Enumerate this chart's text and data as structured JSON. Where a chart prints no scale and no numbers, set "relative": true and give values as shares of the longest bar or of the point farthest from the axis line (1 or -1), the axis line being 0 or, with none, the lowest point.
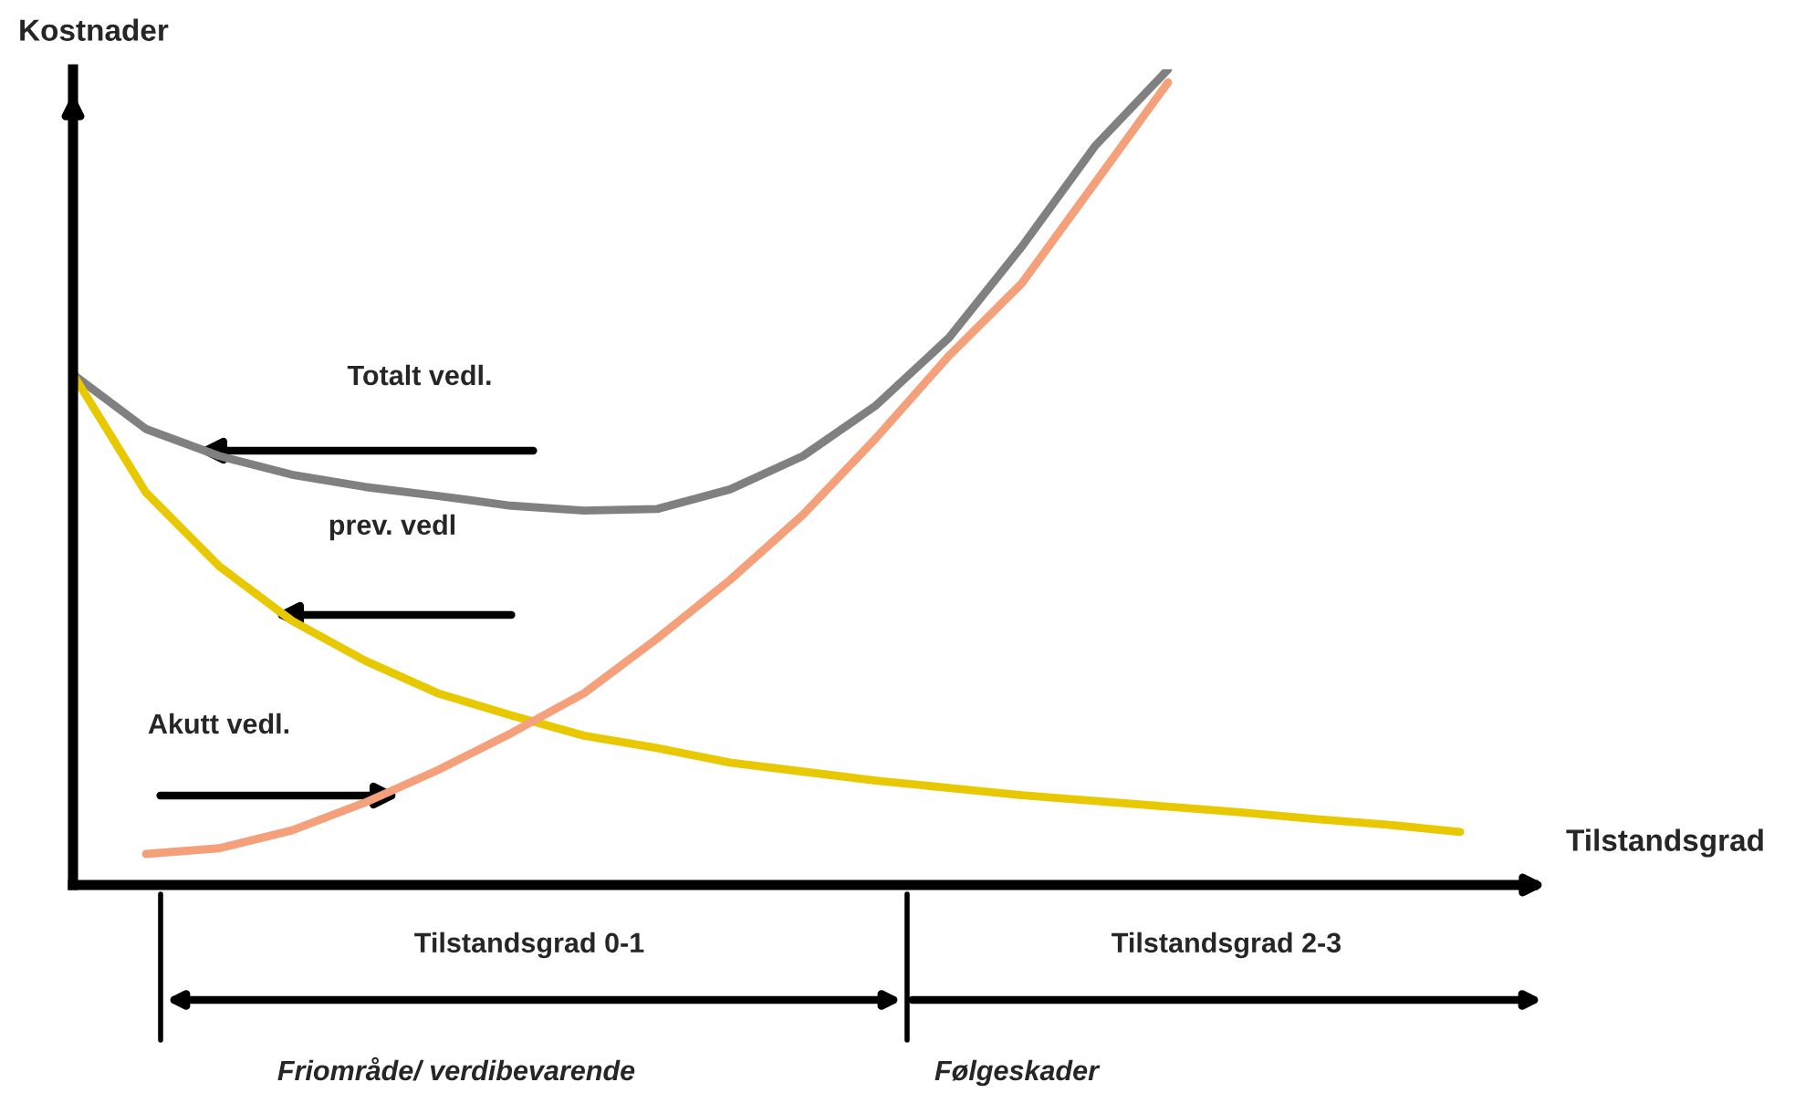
{
  "chart_data": {
    "type": "line",
    "relative": true,
    "xlabel": "Tilstandsgrad",
    "ylabel": "Kostnader",
    "categories": [
      null,
      null,
      null,
      null,
      null,
      null,
      null,
      null,
      null,
      null,
      null,
      null,
      null,
      null,
      null,
      null,
      null,
      null,
      null,
      null,
      null
    ],
    "series": [
      {
        "color": "#808080",
        "values": [
          0.626,
          0.559,
          0.526,
          0.503,
          0.488,
          0.477,
          0.465,
          0.459,
          0.461,
          0.485,
          0.526,
          0.588,
          0.671,
          0.783,
          0.906,
          1.0,
          null,
          null,
          null,
          null,
          null
        ]
      },
      {
        "color": "#e8c800",
        "values": [
          0.626,
          0.481,
          0.391,
          0.324,
          0.275,
          0.235,
          0.208,
          0.183,
          0.168,
          0.15,
          0.139,
          0.128,
          0.119,
          0.11,
          0.103,
          0.096,
          0.089,
          0.081,
          0.074,
          0.065,
          null
        ]
      },
      {
        "color": "#f4a07a",
        "values": [
          null,
          0.038,
          0.045,
          0.067,
          0.101,
          0.141,
          0.186,
          0.235,
          0.302,
          0.374,
          0.454,
          0.548,
          0.649,
          0.738,
          0.861,
          0.984,
          null,
          null,
          null,
          null,
          null
        ]
      }
    ],
    "annotations": [
      "Totalt vedl.",
      "prev. vedl",
      "Akutt vedl.",
      "Tilstandsgrad 0-1",
      "Tilstandsgrad 2-3",
      "Friområde/ verdibevarende",
      "Følgeskader"
    ],
    "grid": false,
    "legend": false
  }
}
